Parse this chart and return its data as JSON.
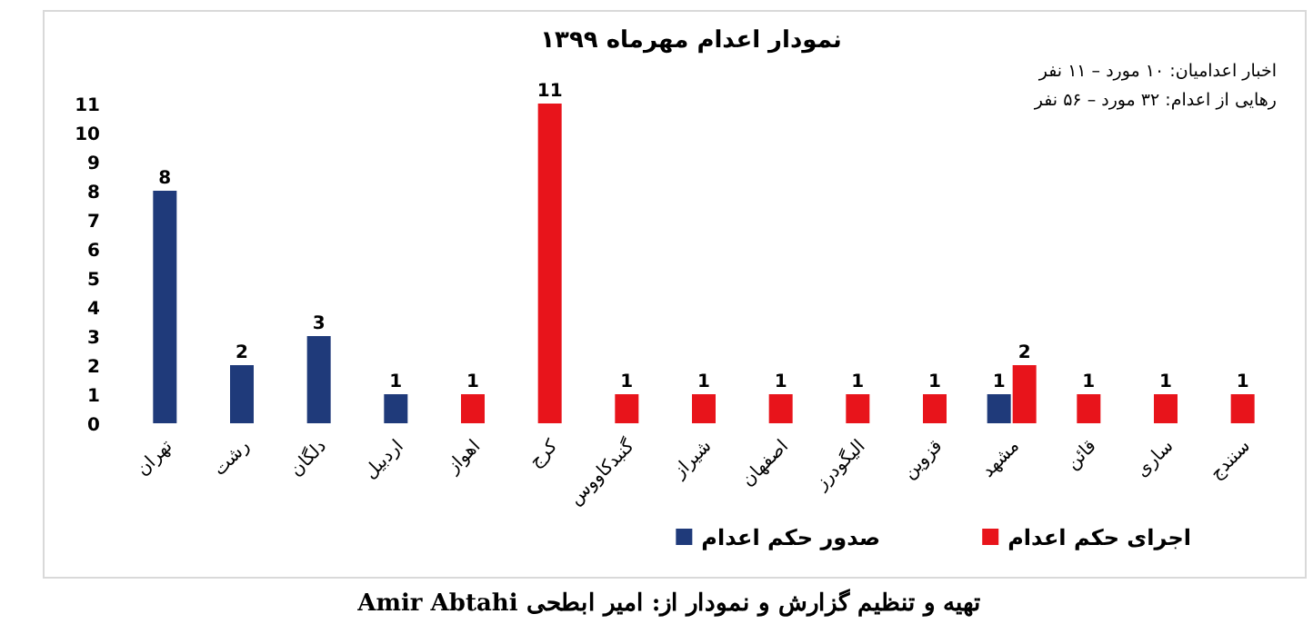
{
  "chart_data": {
    "type": "bar",
    "title": "نمودار اعدام مهرماه ۱۳۹۹",
    "categories": [
      "تهران",
      "رشت",
      "دلگان",
      "اردبیل",
      "اهواز",
      "کرج",
      "گنبدکاووس",
      "شیراز",
      "اصفهان",
      "الیگودرز",
      "قزوین",
      "مشهد",
      "قائن",
      "ساری",
      "سنندج"
    ],
    "series": [
      {
        "name": "صدور حکم اعدام",
        "color": "#1f3a7a",
        "values": [
          8,
          2,
          3,
          1,
          null,
          null,
          null,
          null,
          null,
          null,
          null,
          1,
          null,
          null,
          null
        ]
      },
      {
        "name": "اجرای حکم اعدام",
        "color": "#e8141b",
        "values": [
          null,
          null,
          null,
          null,
          1,
          11,
          1,
          1,
          1,
          1,
          1,
          2,
          1,
          1,
          1
        ]
      }
    ],
    "ylim": [
      0,
      11
    ],
    "yticks": [
      0,
      1,
      2,
      3,
      4,
      5,
      6,
      7,
      8,
      9,
      10,
      11
    ],
    "data_labels": true,
    "legend": "bottom",
    "grid": false,
    "annotations": [
      "اخبار اعدامیان: ۱۰ مورد – ۱۱ نفر",
      "رهایی از اعدام: ۳۲ مورد – ۵۶ نفر",
      "تهیه و تنظیم گزارش و نمودار از: امیر ابطحی  Amir Abtahi"
    ]
  }
}
